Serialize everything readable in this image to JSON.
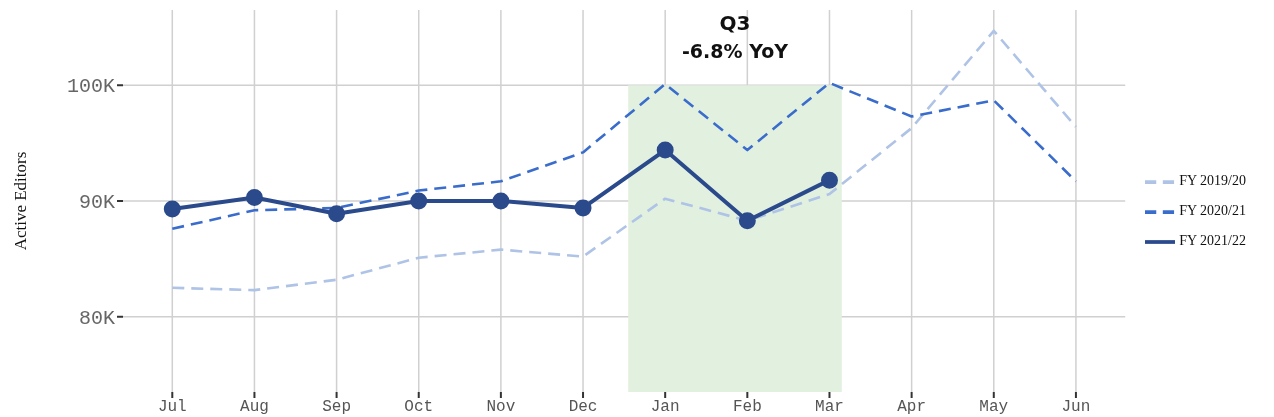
{
  "chart_data": {
    "type": "line",
    "ylabel": "Active Editors",
    "categories": [
      "Jul",
      "Aug",
      "Sep",
      "Oct",
      "Nov",
      "Dec",
      "Jan",
      "Feb",
      "Mar",
      "Apr",
      "May",
      "Jun"
    ],
    "series": [
      {
        "name": "FY 2019/20",
        "color": "#aec3e6",
        "line_style": "dashed",
        "marker": "none",
        "values": [
          82.5,
          82.3,
          83.2,
          85.1,
          85.8,
          85.2,
          90.2,
          88.3,
          90.6,
          96.3,
          104.7,
          96.4
        ]
      },
      {
        "name": "FY 2020/21",
        "color": "#3a6ccc",
        "line_style": "dashed",
        "marker": "none",
        "values": [
          87.6,
          89.2,
          89.4,
          90.9,
          91.7,
          94.2,
          100.1,
          94.4,
          100.2,
          97.3,
          98.7,
          91.7
        ]
      },
      {
        "name": "FY 2021/22",
        "color": "#2b4a8c",
        "line_style": "solid",
        "marker": "circle",
        "values": [
          89.3,
          90.3,
          88.9,
          90.0,
          90.0,
          89.4,
          94.4,
          88.3,
          91.8,
          null,
          null,
          null
        ]
      }
    ],
    "ylim": [
      73.5,
      106.5
    ],
    "yticks": [
      {
        "value": 80,
        "label": "80K"
      },
      {
        "value": 90,
        "label": "90K"
      },
      {
        "value": 100,
        "label": "100K"
      }
    ],
    "bands": [
      {
        "axis": "x",
        "from": "Jan",
        "to": "Mar",
        "label": "Q3",
        "color": "#e2f0e0"
      }
    ],
    "annotations": [
      "-6.8% YoY"
    ],
    "grid": true,
    "legend": "right"
  }
}
